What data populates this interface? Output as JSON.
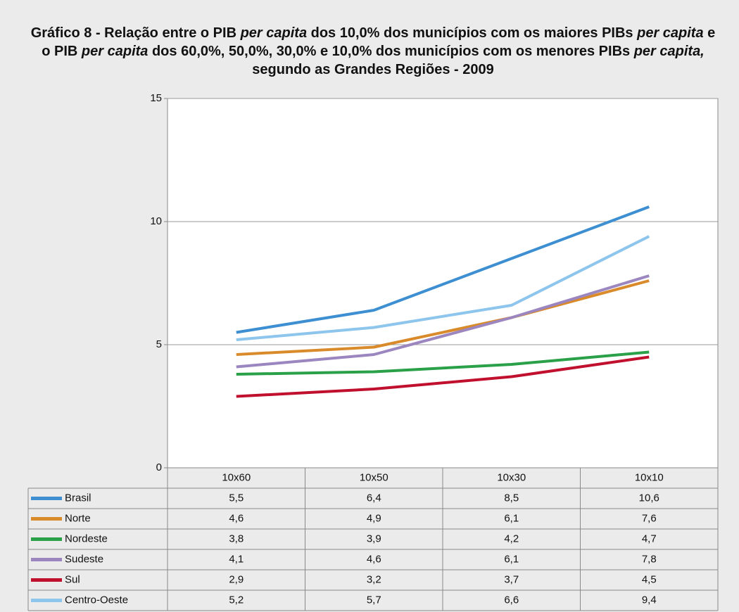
{
  "chart_data": {
    "type": "line",
    "title_parts": [
      {
        "text": "Gráfico 8 - Relação entre o PIB ",
        "italic": false
      },
      {
        "text": "per capita",
        "italic": true
      },
      {
        "text": " dos 10,0% dos municípios com os maiores PIBs ",
        "italic": false
      },
      {
        "text": "per capita",
        "italic": true
      },
      {
        "text": " e o PIB ",
        "italic": false
      },
      {
        "text": "per capita",
        "italic": true
      },
      {
        "text": " dos 60,0%, 50,0%, 30,0% e 10,0% dos municípios com os menores PIBs ",
        "italic": false
      },
      {
        "text": "per capita,",
        "italic": true
      },
      {
        "text": " segundo as Grandes Regiões - 2009",
        "italic": false
      }
    ],
    "categories": [
      "10x60",
      "10x50",
      "10x30",
      "10x10"
    ],
    "ylim": [
      0,
      15
    ],
    "yticks": [
      0,
      5,
      10,
      15
    ],
    "grid": true,
    "series": [
      {
        "name": "Brasil",
        "color": "#3d8fd1",
        "values": [
          5.5,
          6.4,
          8.5,
          10.6
        ],
        "value_labels": [
          "5,5",
          "6,4",
          "8,5",
          "10,6"
        ]
      },
      {
        "name": "Norte",
        "color": "#d98b2b",
        "values": [
          4.6,
          4.9,
          6.1,
          7.6
        ],
        "value_labels": [
          "4,6",
          "4,9",
          "6,1",
          "7,6"
        ]
      },
      {
        "name": "Nordeste",
        "color": "#2aa048",
        "values": [
          3.8,
          3.9,
          4.2,
          4.7
        ],
        "value_labels": [
          "3,8",
          "3,9",
          "4,2",
          "4,7"
        ]
      },
      {
        "name": "Sudeste",
        "color": "#9b86bf",
        "values": [
          4.1,
          4.6,
          6.1,
          7.8
        ],
        "value_labels": [
          "4,1",
          "4,6",
          "6,1",
          "7,8"
        ]
      },
      {
        "name": "Sul",
        "color": "#c0102e",
        "values": [
          2.9,
          3.2,
          3.7,
          4.5
        ],
        "value_labels": [
          "2,9",
          "3,2",
          "3,7",
          "4,5"
        ]
      },
      {
        "name": "Centro-Oeste",
        "color": "#8ec5ec",
        "values": [
          5.2,
          5.7,
          6.6,
          9.4
        ],
        "value_labels": [
          "5,2",
          "5,7",
          "6,6",
          "9,4"
        ]
      }
    ]
  }
}
